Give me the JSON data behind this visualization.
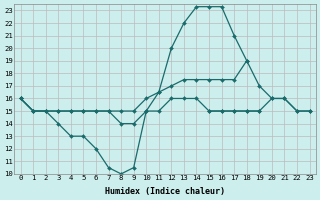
{
  "xlabel": "Humidex (Indice chaleur)",
  "bg_color": "#cceeed",
  "grid_color": "#bbbbbb",
  "line_color": "#1a6b6b",
  "xlim": [
    -0.5,
    23.5
  ],
  "ylim": [
    10,
    23.5
  ],
  "xticks": [
    0,
    1,
    2,
    3,
    4,
    5,
    6,
    7,
    8,
    9,
    10,
    11,
    12,
    13,
    14,
    15,
    16,
    17,
    18,
    19,
    20,
    21,
    22,
    23
  ],
  "yticks": [
    10,
    11,
    12,
    13,
    14,
    15,
    16,
    17,
    18,
    19,
    20,
    21,
    22,
    23
  ],
  "line1_x": [
    0,
    1,
    2,
    3,
    4,
    5,
    6,
    7,
    8,
    9,
    10,
    11,
    12,
    13,
    14,
    15,
    16,
    17,
    18,
    19,
    20,
    21,
    22,
    23
  ],
  "line1_y": [
    16,
    15,
    15,
    14,
    13,
    13,
    12,
    10.5,
    10,
    10.5,
    15,
    16.5,
    20,
    22,
    23.3,
    23.3,
    23.3,
    21,
    19,
    null,
    null,
    null,
    null,
    null
  ],
  "line2_x": [
    0,
    1,
    2,
    3,
    4,
    5,
    6,
    7,
    8,
    9,
    10,
    11,
    12,
    13,
    14,
    15,
    16,
    17,
    18,
    19,
    20,
    21,
    22,
    23
  ],
  "line2_y": [
    16,
    15,
    15,
    15,
    15,
    15,
    15,
    15,
    15,
    15,
    16,
    16.5,
    17,
    17.5,
    17.5,
    17.5,
    17.5,
    17.5,
    19,
    17,
    16,
    16,
    15,
    15
  ],
  "line3_x": [
    0,
    1,
    2,
    3,
    4,
    5,
    6,
    7,
    8,
    9,
    10,
    11,
    12,
    13,
    14,
    15,
    16,
    17,
    18,
    19,
    20,
    21,
    22,
    23
  ],
  "line3_y": [
    16,
    15,
    15,
    15,
    15,
    15,
    15,
    15,
    14,
    14,
    15,
    15,
    16,
    16,
    16,
    15,
    15,
    15,
    15,
    15,
    null,
    null,
    null,
    null
  ],
  "line4_x": [
    0,
    1,
    2,
    3,
    4,
    5,
    6,
    7,
    8,
    9,
    10,
    11,
    12,
    13,
    14,
    15,
    16,
    17,
    18,
    19,
    20,
    21,
    22,
    23
  ],
  "line4_y": [
    null,
    null,
    null,
    null,
    null,
    null,
    null,
    null,
    null,
    null,
    null,
    null,
    null,
    null,
    null,
    15,
    15,
    15,
    15,
    15,
    16,
    16,
    15,
    15
  ]
}
